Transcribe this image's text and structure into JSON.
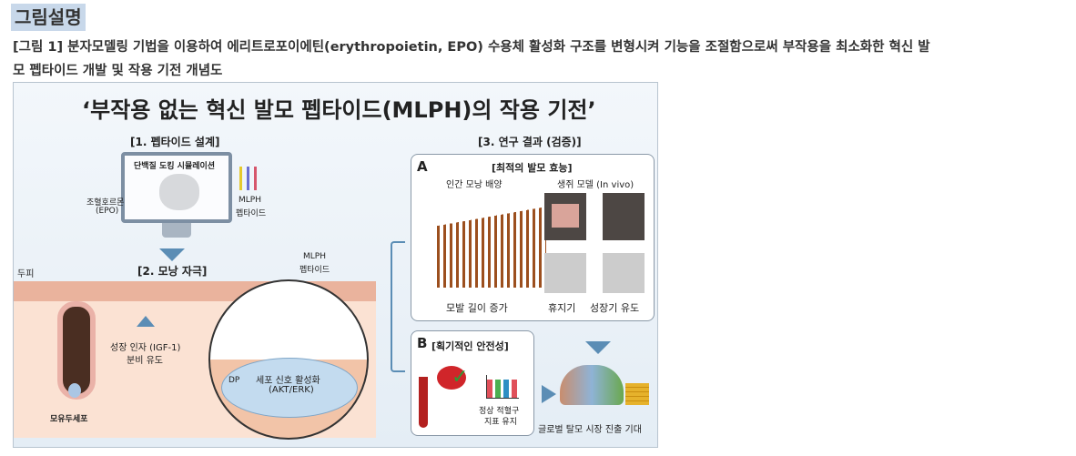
{
  "heading": "그림설명",
  "caption": {
    "line1": "[그림 1] 분자모델링 기법을 이용하여 에리트로포이에틴(erythropoietin, EPO) 수용체 활성화 구조를 변형시켜 기능을 조절함으로써 부작용을 최소화한 혁신 발",
    "line2": "모 펩타이드 개발 및 작용 기전 개념도"
  },
  "figure": {
    "title": "‘부작용 없는 혁신 발모 펩타이드(MLPH)의 작용 기전’",
    "step1": {
      "label": "[1. 펩타이드 설계]",
      "screen": "단백질 도킹 시뮬레이션",
      "epo": "조혈호르몬",
      "epo2": "(EPO)",
      "mlph": "MLPH",
      "mlph2": "펩타이드"
    },
    "step2": {
      "label": "[2. 모낭 자극]",
      "scalp": "두피",
      "mlph": "MLPH",
      "mlph2": "펩타이드",
      "growth": "성장 인자 (IGF-1)",
      "growth2": "분비 유도",
      "dermal": "모유두세포",
      "dp": "DP",
      "signal": "세포 신호 활성화",
      "signal2": "(AKT/ERK)"
    },
    "step3": {
      "label": "[3. 연구 결과 (검증)]",
      "a": {
        "letter": "A",
        "title": "[최적의 발모 효능]",
        "human": "인간 모낭 배양",
        "mouse": "생쥐 모델 (In vivo)",
        "length": "모발 길이 증가",
        "telogen": "휴지기",
        "anagen": "성장기 유도"
      },
      "b": {
        "letter": "B",
        "title": "[획기적인 안전성]",
        "rbc": "정상 적혈구",
        "rbc2": "지표 유지"
      },
      "market": "글로벌 탈모 시장 진출 기대"
    }
  },
  "colors": {
    "accent": "#5b8db5",
    "skin": "#f6d2bd",
    "highlight": "#c8d8ea"
  }
}
